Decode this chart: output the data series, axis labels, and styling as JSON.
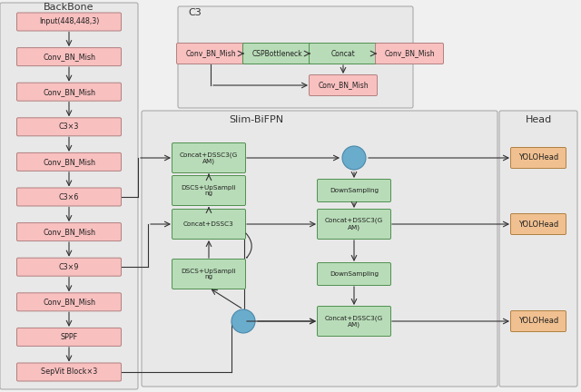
{
  "fig_width": 6.4,
  "fig_height": 4.32,
  "dpi": 100,
  "pink_color": "#f9c0c0",
  "pink_border": "#b08080",
  "green_color": "#b8dcb8",
  "green_border": "#509050",
  "orange_color": "#f0c090",
  "orange_border": "#b08040",
  "blue_circle": "#6aaccc",
  "panel_bg": "#e8e8e8",
  "panel_edge": "#aaaaaa",
  "backbone_blocks": [
    "Input(448,448,3)",
    "Conv_BN_Mish",
    "Conv_BN_Mish",
    "C3×3",
    "Conv_BN_Mish",
    "C3×6",
    "Conv_BN_Mish",
    "C3×9",
    "Conv_BN_Mish",
    "SPPF",
    "SepVit Block×3"
  ]
}
